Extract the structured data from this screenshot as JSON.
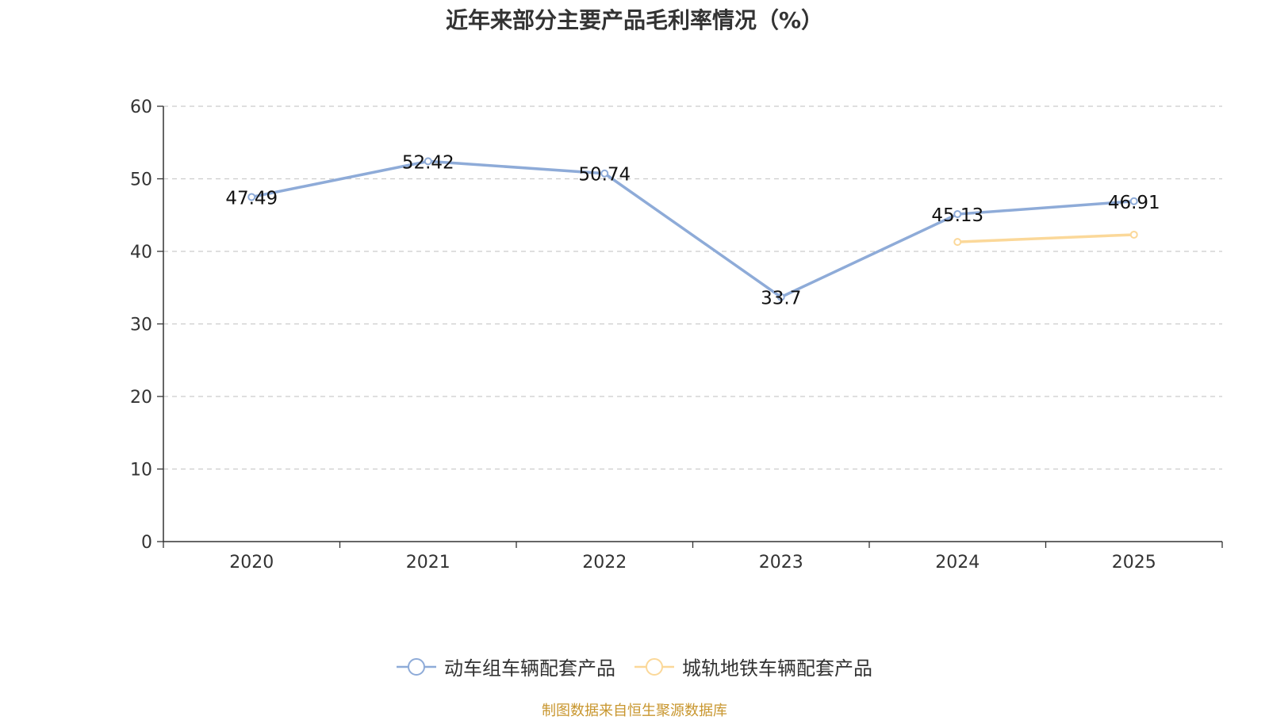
{
  "chart_data": {
    "type": "line",
    "title": "近年来部分主要产品毛利率情况（%）",
    "categories": [
      "2020",
      "2021",
      "2022",
      "2023",
      "2024",
      "2025"
    ],
    "ylim": [
      0,
      60
    ],
    "yticks": [
      0,
      10,
      20,
      30,
      40,
      50,
      60
    ],
    "grid": true,
    "legend_position": "bottom",
    "series": [
      {
        "name": "动车组车辆配套产品",
        "color": "#8eabd8",
        "values": [
          47.49,
          52.42,
          50.74,
          33.7,
          45.13,
          46.91
        ],
        "labels": [
          "47.49",
          "52.42",
          "50.74",
          "33.7",
          "45.13",
          "46.91"
        ]
      },
      {
        "name": "城轨地铁车辆配套产品",
        "color": "#fbd899",
        "values": [
          null,
          null,
          null,
          null,
          41.3,
          42.3
        ],
        "labels": []
      }
    ],
    "source": "制图数据来自恒生聚源数据库"
  }
}
